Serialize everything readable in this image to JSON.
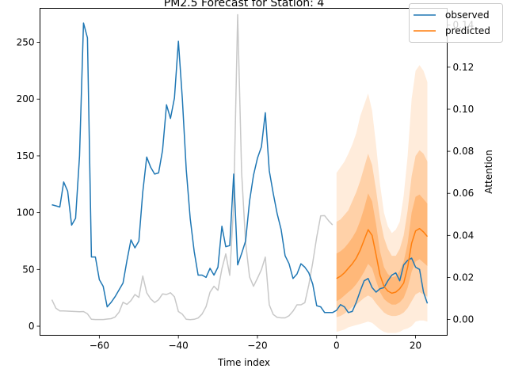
{
  "chart_data": {
    "type": "line",
    "title": "PM2.5 Forecast for Station: 4",
    "xlabel": "Time index",
    "ylabel": "",
    "ylabel_right": "Attention",
    "xlim": [
      -75,
      28
    ],
    "ylim": [
      -8,
      280
    ],
    "ylim_right": [
      -0.0075,
      0.148
    ],
    "xticks": [
      -60,
      -40,
      -20,
      0,
      20
    ],
    "yticks": [
      0,
      50,
      100,
      150,
      200,
      250
    ],
    "yticks_right": [
      0.0,
      0.02,
      0.04,
      0.06,
      0.08,
      0.1,
      0.12,
      0.14
    ],
    "xtick_labels": [
      "−60",
      "−40",
      "−20",
      "0",
      "20"
    ],
    "ytick_labels": [
      "0",
      "50",
      "100",
      "150",
      "200",
      "250"
    ],
    "ytick_right_labels": [
      "0.00",
      "0.02",
      "0.04",
      "0.06",
      "0.08",
      "0.10",
      "0.12",
      "0.14"
    ],
    "legend": {
      "placement": "top-right",
      "entries": [
        "observed",
        "predicted"
      ]
    },
    "colors": {
      "observed": "#1f77b4",
      "predicted": "#ff7f0e",
      "attention": "#c8c8c8",
      "band": "#ff7f0e"
    },
    "grid": false,
    "series": [
      {
        "name": "observed",
        "axis": "left",
        "x": [
          -72,
          -71,
          -70,
          -69,
          -68,
          -67,
          -66,
          -65,
          -64,
          -63,
          -62,
          -61,
          -60,
          -59,
          -58,
          -57,
          -56,
          -55,
          -54,
          -53,
          -52,
          -51,
          -50,
          -49,
          -48,
          -47,
          -46,
          -45,
          -44,
          -43,
          -42,
          -41,
          -40,
          -39,
          -38,
          -37,
          -36,
          -35,
          -34,
          -33,
          -32,
          -31,
          -30,
          -29,
          -28,
          -27,
          -26,
          -25,
          -24,
          -23,
          -22,
          -21,
          -20,
          -19,
          -18,
          -17,
          -16,
          -15,
          -14,
          -13,
          -12,
          -11,
          -10,
          -9,
          -8,
          -7,
          -6,
          -5,
          -4,
          -3,
          -2,
          -1,
          0,
          1,
          2,
          3,
          4,
          5,
          6,
          7,
          8,
          9,
          10,
          11,
          12,
          13,
          14,
          15,
          16,
          17,
          18,
          19,
          20,
          21,
          22,
          23
        ],
        "y": [
          107,
          106,
          105,
          127,
          119,
          89,
          95,
          150,
          267,
          254,
          61,
          61,
          41,
          35,
          17,
          21,
          26,
          32,
          38,
          58,
          76,
          69,
          75,
          118,
          149,
          140,
          134,
          135,
          155,
          195,
          183,
          201,
          251,
          200,
          138,
          95,
          66,
          45,
          45,
          43,
          51,
          45,
          52,
          88,
          70,
          71,
          134,
          54,
          64,
          75,
          110,
          133,
          148,
          158,
          188,
          137,
          117,
          99,
          85,
          62,
          55,
          42,
          46,
          55,
          52,
          47,
          37,
          18,
          17,
          12,
          12,
          12,
          14,
          19,
          17,
          12,
          13,
          21,
          31,
          40,
          42,
          34,
          30,
          33,
          34,
          40,
          45,
          47,
          40,
          54,
          58,
          60,
          52,
          50,
          30,
          20
        ]
      },
      {
        "name": "attention",
        "axis": "right",
        "x": [
          -72,
          -71,
          -70,
          -69,
          -68,
          -67,
          -66,
          -65,
          -64,
          -63,
          -62,
          -61,
          -60,
          -59,
          -58,
          -57,
          -56,
          -55,
          -54,
          -53,
          -52,
          -51,
          -50,
          -49,
          -48,
          -47,
          -46,
          -45,
          -44,
          -43,
          -42,
          -41,
          -40,
          -39,
          -38,
          -37,
          -36,
          -35,
          -34,
          -33,
          -32,
          -31,
          -30,
          -29,
          -28,
          -27,
          -26,
          -25,
          -24,
          -23,
          -22,
          -21,
          -20,
          -19,
          -18,
          -17,
          -16,
          -15,
          -14,
          -13,
          -12,
          -11,
          -10,
          -9,
          -8,
          -7,
          -6,
          -5,
          -4,
          -3,
          -2,
          -1
        ],
        "y": [
          0.0094,
          0.0054,
          0.0041,
          0.0041,
          0.004,
          0.0039,
          0.0038,
          0.0037,
          0.0038,
          0.0027,
          0.0001,
          0.0,
          0.0,
          0.0,
          0.0002,
          0.0004,
          0.0012,
          0.0035,
          0.0082,
          0.0072,
          0.009,
          0.0119,
          0.0105,
          0.0207,
          0.0127,
          0.0098,
          0.0081,
          0.0094,
          0.0122,
          0.0119,
          0.0127,
          0.0108,
          0.0038,
          0.0025,
          0.0001,
          -0.0001,
          0.0001,
          0.0007,
          0.0026,
          0.0061,
          0.013,
          0.0158,
          0.0139,
          0.0241,
          0.0312,
          0.021,
          0.055,
          0.145,
          0.07,
          0.0367,
          0.0203,
          0.0158,
          0.0196,
          0.0237,
          0.0297,
          0.007,
          0.0024,
          0.001,
          0.0008,
          0.0008,
          0.0018,
          0.004,
          0.007,
          0.007,
          0.008,
          0.0164,
          0.0271,
          0.0392,
          0.0493,
          0.0494,
          0.047,
          0.045
        ]
      },
      {
        "name": "predicted",
        "axis": "left",
        "x": [
          0,
          1,
          2,
          3,
          4,
          5,
          6,
          7,
          8,
          9,
          10,
          11,
          12,
          13,
          14,
          15,
          16,
          17,
          18,
          19,
          20,
          21,
          22,
          23
        ],
        "y": [
          42,
          44,
          47,
          51,
          55,
          60,
          67,
          76,
          85,
          80,
          63,
          45,
          35,
          31,
          29,
          30,
          33,
          38,
          52,
          73,
          84,
          86,
          83,
          79
        ],
        "bands": [
          {
            "opacity": 0.15,
            "lower": [
              -5,
              -4,
              -3,
              -1,
              0,
              1,
              2,
              3,
              4,
              3,
              0,
              -3,
              -5,
              -6,
              -6,
              -6,
              -5,
              -3,
              -2,
              0,
              4,
              5,
              5,
              4
            ],
            "upper": [
              135,
              140,
              145,
              152,
              160,
              170,
              185,
              195,
              205,
              190,
              160,
              125,
              100,
              88,
              82,
              85,
              92,
              115,
              150,
              200,
              225,
              230,
              225,
              215
            ]
          },
          {
            "opacity": 0.25,
            "lower": [
              8,
              9,
              11,
              14,
              17,
              19,
              22,
              25,
              27,
              25,
              20,
              16,
              12,
              10,
              9,
              9,
              10,
              12,
              16,
              22,
              28,
              30,
              28,
              26
            ],
            "upper": [
              92,
              94,
              98,
              102,
              110,
              118,
              128,
              140,
              152,
              142,
              120,
              95,
              78,
              68,
              62,
              62,
              68,
              80,
              102,
              132,
              150,
              155,
              152,
              145
            ]
          },
          {
            "opacity": 0.3,
            "lower": [
              22,
              24,
              27,
              30,
              33,
              37,
              42,
              48,
              55,
              51,
              40,
              30,
              24,
              21,
              19,
              19,
              21,
              25,
              34,
              48,
              57,
              59,
              56,
              53
            ],
            "upper": [
              64,
              66,
              69,
              73,
              78,
              84,
              93,
              104,
              117,
              110,
              90,
              66,
              52,
              46,
              43,
              44,
              49,
              57,
              73,
              100,
              114,
              116,
              112,
              108
            ]
          }
        ]
      }
    ]
  }
}
